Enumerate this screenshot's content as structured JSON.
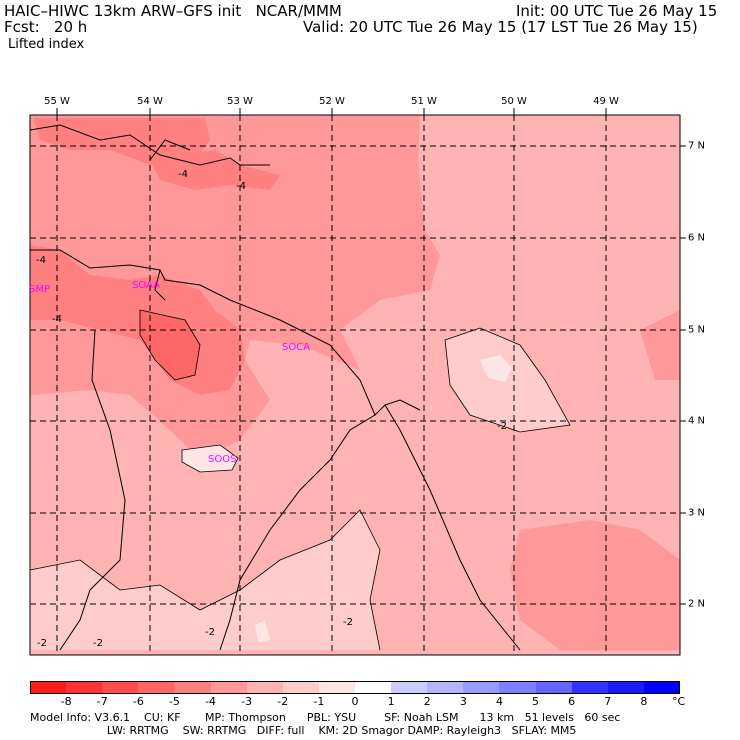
{
  "header": {
    "title_left": "HAIC–HIWC 13km ARW–GFS init   NCAR/MMM",
    "fcst": "Fcst:   20 h",
    "field": "Lifted index",
    "init": "Init: 00 UTC Tue 26 May 15",
    "valid": "Valid: 20 UTC Tue 26 May 15 (17 LST Tue 26 May 15)"
  },
  "map": {
    "lon_labels": [
      "55 W",
      "54 W",
      "53 W",
      "52 W",
      "51 W",
      "50 W",
      "49 W"
    ],
    "lat_labels": [
      "7 N",
      "6 N",
      "5 N",
      "4 N",
      "3 N",
      "2 N"
    ],
    "stations": [
      "SMP",
      "SOAA",
      "SOCA",
      "SOOS"
    ],
    "contour_labels": [
      "-4",
      "-4",
      "-4",
      "-4",
      "-2",
      "-2",
      "-2",
      "-2",
      "-2"
    ]
  },
  "colorbar": {
    "labels": [
      "-8",
      "-7",
      "-6",
      "-5",
      "-4",
      "-3",
      "-2",
      "-1",
      "0",
      "1",
      "2",
      "3",
      "4",
      "5",
      "6",
      "7",
      "8"
    ],
    "unit": "°C",
    "colors": [
      "#ff1a1a",
      "#ff3333",
      "#ff4d4d",
      "#ff6666",
      "#ff8080",
      "#ff9999",
      "#ffb3b3",
      "#ffcccc",
      "#ffe6e6",
      "#ffffff",
      "#ccccff",
      "#b3b3ff",
      "#9999ff",
      "#8080ff",
      "#6666ff",
      "#3333ff",
      "#1a1aff",
      "#0000ff"
    ]
  },
  "footer": {
    "line1": "Model Info: V3.6.1    CU: KF       MP: Thompson      PBL: YSU        SF: Noah LSM      13 km   51 levels   60 sec",
    "line2": "                      LW: RRTMG    SW: RRTMG   DIFF: full    KM: 2D Smagor DAMP: Rayleigh3   SFLAY: MM5"
  }
}
